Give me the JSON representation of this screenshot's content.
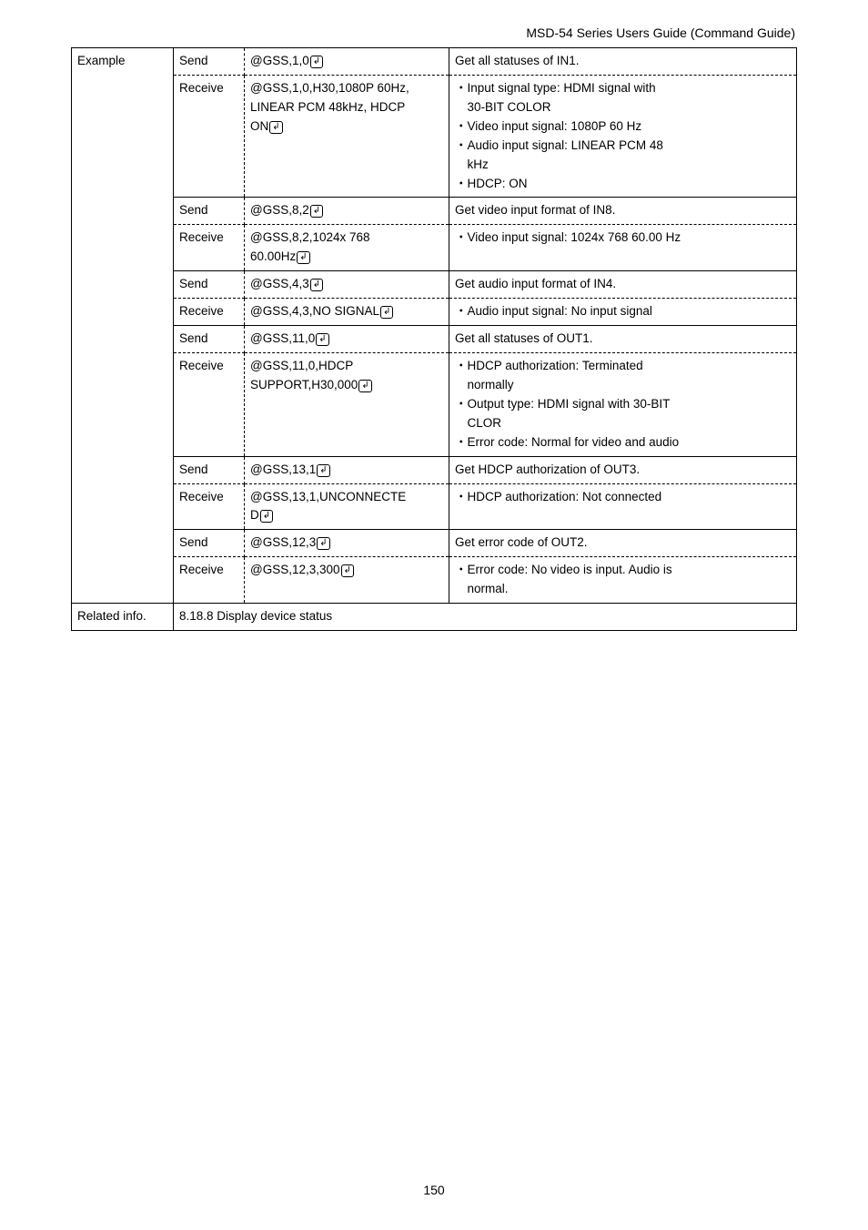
{
  "doc_header": "MSD-54 Series Users Guide (Command Guide)",
  "page_number": "150",
  "labels": {
    "example": "Example",
    "related": "Related info.",
    "send": "Send",
    "receive": "Receive",
    "related_text": "8.18.8 Display device status"
  },
  "rows": [
    {
      "sr": "Send",
      "cmd": "@GSS,1,0",
      "cmd_ret": true,
      "desc": "Get all statuses of IN1."
    },
    {
      "sr": "Receive",
      "cmd_lines": [
        "@GSS,1,0,H30,1080P 60Hz,",
        "LINEAR PCM 48kHz, HDCP",
        "ON"
      ],
      "cmd_ret_last": true,
      "desc_lines": [
        "・Input signal type: HDMI signal with",
        "　30-BIT COLOR",
        "・Video input signal: 1080P 60 Hz",
        "・Audio input signal: LINEAR PCM 48",
        "　kHz",
        "・HDCP: ON"
      ]
    },
    {
      "sr": "Send",
      "cmd": "@GSS,8,2",
      "cmd_ret": true,
      "desc": "Get video input format of IN8."
    },
    {
      "sr": "Receive",
      "cmd_lines": [
        "@GSS,8,2,1024x 768",
        "60.00Hz"
      ],
      "cmd_ret_last": true,
      "desc": "・Video input signal: 1024x 768 60.00 Hz"
    },
    {
      "sr": "Send",
      "cmd": "@GSS,4,3",
      "cmd_ret": true,
      "desc": "Get audio input format of IN4."
    },
    {
      "sr": "Receive",
      "cmd": "@GSS,4,3,NO SIGNAL",
      "cmd_ret": true,
      "desc": "・Audio input signal: No input signal"
    },
    {
      "sr": "Send",
      "cmd": "@GSS,11,0",
      "cmd_ret": true,
      "desc": "Get all statuses of OUT1."
    },
    {
      "sr": "Receive",
      "cmd_lines": [
        "@GSS,11,0,HDCP",
        "SUPPORT,H30,000"
      ],
      "cmd_ret_last": true,
      "desc_lines": [
        "・HDCP authorization: Terminated",
        "　normally",
        "・Output type: HDMI signal with 30-BIT",
        "　CLOR",
        "・Error code: Normal for video and audio"
      ]
    },
    {
      "sr": "Send",
      "cmd": "@GSS,13,1",
      "cmd_ret": true,
      "desc": "Get HDCP authorization of OUT3."
    },
    {
      "sr": "Receive",
      "cmd_lines": [
        "@GSS,13,1,UNCONNECTE",
        "D"
      ],
      "cmd_ret_last": true,
      "desc": "・HDCP authorization: Not connected"
    },
    {
      "sr": "Send",
      "cmd": "@GSS,12,3",
      "cmd_ret": true,
      "desc": "Get error code of OUT2."
    },
    {
      "sr": "Receive",
      "cmd": "@GSS,12,3,300",
      "cmd_ret": true,
      "desc_lines": [
        "・Error code: No video is input. Audio is",
        "　normal."
      ]
    }
  ]
}
